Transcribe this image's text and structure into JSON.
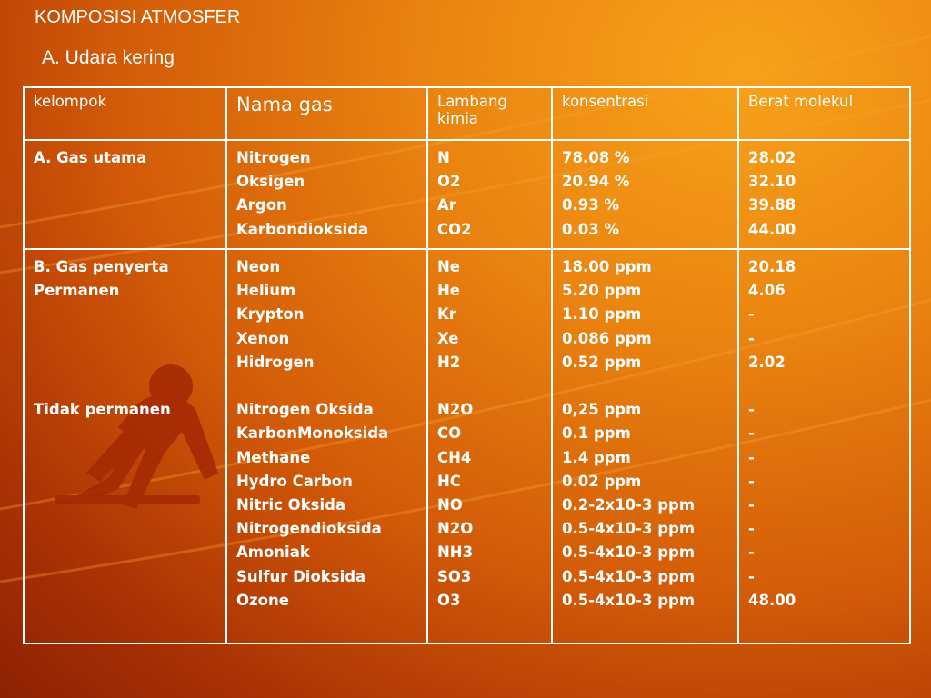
{
  "title": "KOMPOSISI ATMOSFER",
  "subtitle": "A. Udara kering",
  "colors": {
    "background": "#e07010",
    "text": "#ffffff",
    "decoration": "#a52a04"
  },
  "table": {
    "headers": [
      "kelompok",
      "Nama gas",
      "Lambang kimia",
      "konsentrasi",
      "Berat molekul"
    ],
    "rows": [
      {
        "kelompok": [
          "A. Gas utama"
        ],
        "nama": [
          "Nitrogen",
          "Oksigen",
          "Argon",
          "Karbondioksida"
        ],
        "lambang": [
          "N",
          "O2",
          "Ar",
          "CO2"
        ],
        "konsentrasi": [
          "78.08 %",
          "20.94 %",
          "0.93 %",
          "0.03 %"
        ],
        "berat": [
          "28.02",
          "32.10",
          "39.88",
          "44.00"
        ]
      },
      {
        "kelompok": [
          "B. Gas penyerta",
          "Permanen",
          "",
          "",
          "",
          "",
          "Tidak permanen"
        ],
        "nama": [
          "Neon",
          "Helium",
          "Krypton",
          "Xenon",
          "Hidrogen",
          "",
          "Nitrogen Oksida",
          "KarbonMonoksida",
          "Methane",
          "Hydro Carbon",
          "Nitric Oksida",
          "Nitrogendioksida",
          "Amoniak",
          "Sulfur Dioksida",
          "Ozone"
        ],
        "lambang": [
          "Ne",
          "He",
          "Kr",
          "Xe",
          "H2",
          "",
          "N2O",
          "CO",
          "CH4",
          "HC",
          "NO",
          "N2O",
          "NH3",
          "SO3",
          "O3"
        ],
        "konsentrasi": [
          "18.00 ppm",
          "5.20 ppm",
          "1.10 ppm",
          "0.086 ppm",
          "0.52 ppm",
          "",
          "0,25 ppm",
          "0.1 ppm",
          "1.4 ppm",
          "0.02 ppm",
          "0.2-2x10-3 ppm",
          "0.5-4x10-3 ppm",
          "0.5-4x10-3 ppm",
          "0.5-4x10-3 ppm",
          "0.5-4x10-3 ppm"
        ],
        "berat": [
          "20.18",
          "4.06",
          "-",
          "-",
          "2.02",
          "",
          "-",
          "-",
          "-",
          "-",
          "-",
          "-",
          "-",
          "-",
          "48.00"
        ]
      }
    ]
  }
}
